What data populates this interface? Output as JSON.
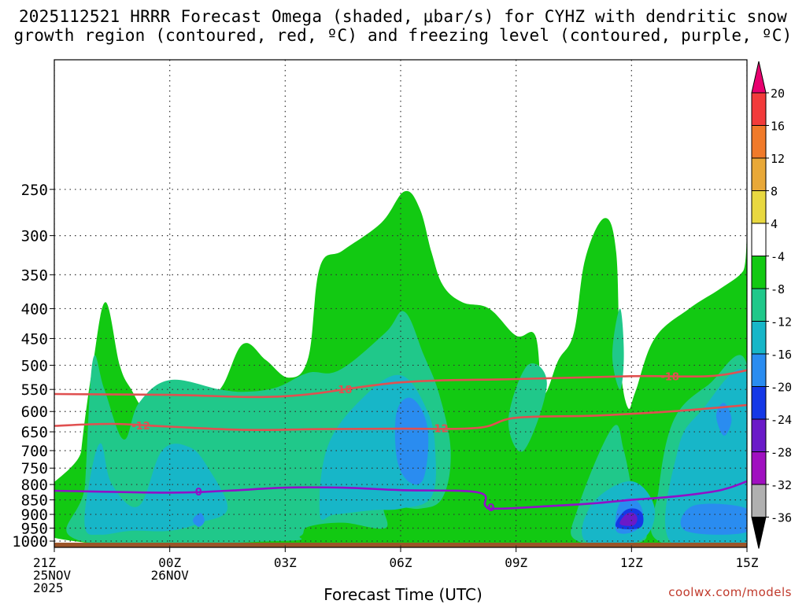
{
  "title_line1": "2025112521 HRRR Forecast Omega (shaded, μbar/s) for CYHZ with dendritic snow",
  "title_line2": "growth region (contoured, red, ºC) and freezing level (contoured, purple, ºC)",
  "credit": "coolwx.com/models",
  "chart_data": {
    "type": "heatmap",
    "xlabel": "Forecast Time (UTC)",
    "x_ticks": [
      {
        "hour": 0,
        "lines": [
          "21Z",
          "25NOV",
          "2025"
        ]
      },
      {
        "hour": 3,
        "lines": [
          "00Z",
          "26NOV"
        ]
      },
      {
        "hour": 6,
        "lines": [
          "03Z"
        ]
      },
      {
        "hour": 9,
        "lines": [
          "06Z"
        ]
      },
      {
        "hour": 12,
        "lines": [
          "09Z"
        ]
      },
      {
        "hour": 15,
        "lines": [
          "12Z"
        ]
      },
      {
        "hour": 18,
        "lines": [
          "15Z"
        ]
      }
    ],
    "xlim": [
      0,
      18
    ],
    "y_ticks": [
      250,
      300,
      350,
      400,
      450,
      500,
      550,
      600,
      650,
      700,
      750,
      800,
      850,
      900,
      950,
      1000
    ],
    "ylim": [
      1025,
      150
    ],
    "y_scale": "log",
    "colorbar": {
      "labels": [
        "20",
        "16",
        "12",
        "8",
        "4",
        "-4",
        "-8",
        "-12",
        "-16",
        "-20",
        "-24",
        "-28",
        "-32",
        "-36"
      ],
      "colors": [
        "#e8006f",
        "#f23b3b",
        "#f07a2a",
        "#e8a838",
        "#e8d840",
        "#ffffff",
        "#12c912",
        "#20c88a",
        "#17b6c8",
        "#2a8cf0",
        "#1438e6",
        "#6a1ac8",
        "#a010c0",
        "#b0b0b0",
        "#000000"
      ]
    },
    "omega_regions": [
      {
        "level": -4,
        "color": "#12c912",
        "points": [
          [
            0.5,
            1000
          ],
          [
            0.7,
            700
          ],
          [
            1.0,
            500
          ],
          [
            1.33,
            390
          ],
          [
            1.7,
            500
          ],
          [
            2.0,
            550
          ],
          [
            2.4,
            600
          ],
          [
            3.0,
            600
          ],
          [
            3.6,
            565
          ],
          [
            4.3,
            550
          ],
          [
            4.9,
            460
          ],
          [
            5.5,
            490
          ],
          [
            6.1,
            525
          ],
          [
            6.6,
            485
          ],
          [
            6.9,
            340
          ],
          [
            7.5,
            318
          ],
          [
            8.5,
            285
          ],
          [
            9.1,
            252
          ],
          [
            9.5,
            270
          ],
          [
            9.8,
            320
          ],
          [
            10.1,
            365
          ],
          [
            10.6,
            390
          ],
          [
            11.3,
            400
          ],
          [
            12.0,
            445
          ],
          [
            12.5,
            445
          ],
          [
            12.7,
            560
          ],
          [
            13.1,
            490
          ],
          [
            13.5,
            440
          ],
          [
            13.8,
            328
          ],
          [
            14.3,
            280
          ],
          [
            14.6,
            320
          ],
          [
            14.7,
            490
          ],
          [
            14.9,
            590
          ],
          [
            15.1,
            555
          ],
          [
            15.6,
            450
          ],
          [
            16.5,
            400
          ],
          [
            17.3,
            370
          ],
          [
            17.9,
            345
          ],
          [
            18,
            320
          ],
          [
            18,
            1000
          ]
        ]
      },
      {
        "level": -8,
        "color": "#20c88a",
        "points": [
          [
            0.7,
            1000
          ],
          [
            0.8,
            800
          ],
          [
            1.0,
            490
          ],
          [
            1.3,
            550
          ],
          [
            1.8,
            670
          ],
          [
            2.2,
            580
          ],
          [
            3.0,
            530
          ],
          [
            4.3,
            550
          ],
          [
            5.0,
            555
          ],
          [
            5.8,
            545
          ],
          [
            6.6,
            515
          ],
          [
            7.4,
            510
          ],
          [
            8.6,
            440
          ],
          [
            9.1,
            405
          ],
          [
            9.6,
            480
          ],
          [
            10.0,
            560
          ],
          [
            10.3,
            700
          ],
          [
            10.1,
            840
          ],
          [
            9.5,
            880
          ],
          [
            8.6,
            870
          ],
          [
            8.6,
            950
          ],
          [
            7.5,
            930
          ],
          [
            6.6,
            945
          ],
          [
            6.4,
            980
          ],
          [
            5.8,
            1000
          ]
        ]
      },
      {
        "level": -8,
        "color": "#20c88a",
        "points": [
          [
            11.8,
            620
          ],
          [
            12.3,
            500
          ],
          [
            12.8,
            540
          ],
          [
            12.2,
            700
          ]
        ]
      },
      {
        "level": -8,
        "color": "#20c88a",
        "points": [
          [
            13.6,
            1000
          ],
          [
            13.6,
            880
          ],
          [
            14.5,
            640
          ],
          [
            14.8,
            700
          ],
          [
            15.1,
            880
          ],
          [
            15.3,
            1000
          ]
        ]
      },
      {
        "level": -8,
        "color": "#20c88a",
        "points": [
          [
            14.5,
            480
          ],
          [
            14.7,
            400
          ],
          [
            14.8,
            480
          ],
          [
            14.7,
            550
          ]
        ]
      },
      {
        "level": -8,
        "color": "#20c88a",
        "points": [
          [
            15.7,
            1000
          ],
          [
            15.7,
            820
          ],
          [
            16.1,
            620
          ],
          [
            17.0,
            540
          ],
          [
            18,
            500
          ],
          [
            18,
            1000
          ]
        ]
      },
      {
        "level": -12,
        "color": "#17b6c8",
        "points": [
          [
            0.8,
            950
          ],
          [
            0.9,
            800
          ],
          [
            1.2,
            680
          ],
          [
            1.5,
            800
          ],
          [
            2.2,
            870
          ],
          [
            2.8,
            700
          ],
          [
            3.5,
            690
          ],
          [
            4.0,
            750
          ],
          [
            4.5,
            880
          ],
          [
            3.8,
            930
          ],
          [
            3.0,
            960
          ],
          [
            2.0,
            960
          ],
          [
            1.2,
            975
          ]
        ]
      },
      {
        "level": -12,
        "color": "#17b6c8",
        "points": [
          [
            6.9,
            900
          ],
          [
            7.1,
            690
          ],
          [
            8.0,
            570
          ],
          [
            9.0,
            520
          ],
          [
            9.7,
            600
          ],
          [
            9.9,
            700
          ],
          [
            9.8,
            840
          ],
          [
            9.0,
            880
          ],
          [
            8.3,
            885
          ],
          [
            7.3,
            900
          ]
        ]
      },
      {
        "level": -12,
        "color": "#17b6c8",
        "points": [
          [
            13.8,
            1000
          ],
          [
            14.0,
            860
          ],
          [
            15.0,
            790
          ],
          [
            15.6,
            880
          ],
          [
            15.2,
            1000
          ]
        ]
      },
      {
        "level": -12,
        "color": "#17b6c8",
        "points": [
          [
            16.0,
            1000
          ],
          [
            16.2,
            700
          ],
          [
            16.8,
            600
          ],
          [
            18,
            520
          ],
          [
            18,
            1000
          ]
        ]
      },
      {
        "level": -16,
        "color": "#2a8cf0",
        "points": [
          [
            8.9,
            720
          ],
          [
            8.9,
            600
          ],
          [
            9.3,
            570
          ],
          [
            9.7,
            640
          ],
          [
            9.6,
            780
          ],
          [
            9.2,
            790
          ]
        ]
      },
      {
        "level": -16,
        "color": "#2a8cf0",
        "points": [
          [
            14.6,
            960
          ],
          [
            14.7,
            860
          ],
          [
            15.1,
            850
          ],
          [
            15.3,
            900
          ],
          [
            15.1,
            960
          ]
        ]
      },
      {
        "level": -16,
        "color": "#2a8cf0",
        "points": [
          [
            17.2,
            610
          ],
          [
            17.4,
            580
          ],
          [
            17.6,
            620
          ],
          [
            17.4,
            660
          ]
        ]
      },
      {
        "level": -16,
        "color": "#2a8cf0",
        "points": [
          [
            16.4,
            960
          ],
          [
            16.6,
            870
          ],
          [
            18,
            880
          ],
          [
            18,
            965
          ]
        ]
      },
      {
        "level": -16,
        "color": "#2a8cf0",
        "points": [
          [
            3.6,
            920
          ],
          [
            3.8,
            895
          ],
          [
            3.9,
            925
          ],
          [
            3.75,
            945
          ]
        ]
      },
      {
        "level": -20,
        "color": "#1438e6",
        "points": [
          [
            14.6,
            945
          ],
          [
            14.8,
            890
          ],
          [
            15.1,
            880
          ],
          [
            15.3,
            905
          ],
          [
            15.2,
            950
          ]
        ]
      },
      {
        "level": -24,
        "color": "#6a1ac8",
        "points": [
          [
            14.7,
            935
          ],
          [
            14.85,
            900
          ],
          [
            15.05,
            895
          ],
          [
            15.15,
            915
          ],
          [
            15.05,
            940
          ]
        ]
      }
    ],
    "dgz_contours": [
      {
        "label": "-18",
        "color": "#e05050",
        "points": [
          [
            0,
            560
          ],
          [
            3,
            562
          ],
          [
            6,
            565
          ],
          [
            9,
            535
          ],
          [
            12,
            528
          ],
          [
            15,
            522
          ],
          [
            17,
            522
          ],
          [
            18,
            510
          ]
        ]
      },
      {
        "label": "-12",
        "color": "#e05050",
        "points": [
          [
            0,
            635
          ],
          [
            1.5,
            630
          ],
          [
            3,
            637
          ],
          [
            5,
            645
          ],
          [
            7,
            643
          ],
          [
            9,
            642
          ],
          [
            11,
            640
          ],
          [
            12,
            615
          ],
          [
            14,
            610
          ],
          [
            16,
            600
          ],
          [
            18,
            585
          ]
        ]
      }
    ],
    "freezing_level": {
      "label": "0",
      "color": "#9010c8",
      "points": [
        [
          0,
          820
        ],
        [
          3,
          826
        ],
        [
          4.5,
          820
        ],
        [
          6,
          810
        ],
        [
          7.5,
          810
        ],
        [
          9,
          818
        ],
        [
          11,
          825
        ],
        [
          11.2,
          870
        ],
        [
          11.5,
          880
        ],
        [
          13,
          870
        ],
        [
          14,
          862
        ],
        [
          15,
          850
        ],
        [
          16,
          840
        ],
        [
          17,
          825
        ],
        [
          17.5,
          812
        ],
        [
          18,
          790
        ]
      ]
    },
    "surface_color": "#9b5428"
  }
}
